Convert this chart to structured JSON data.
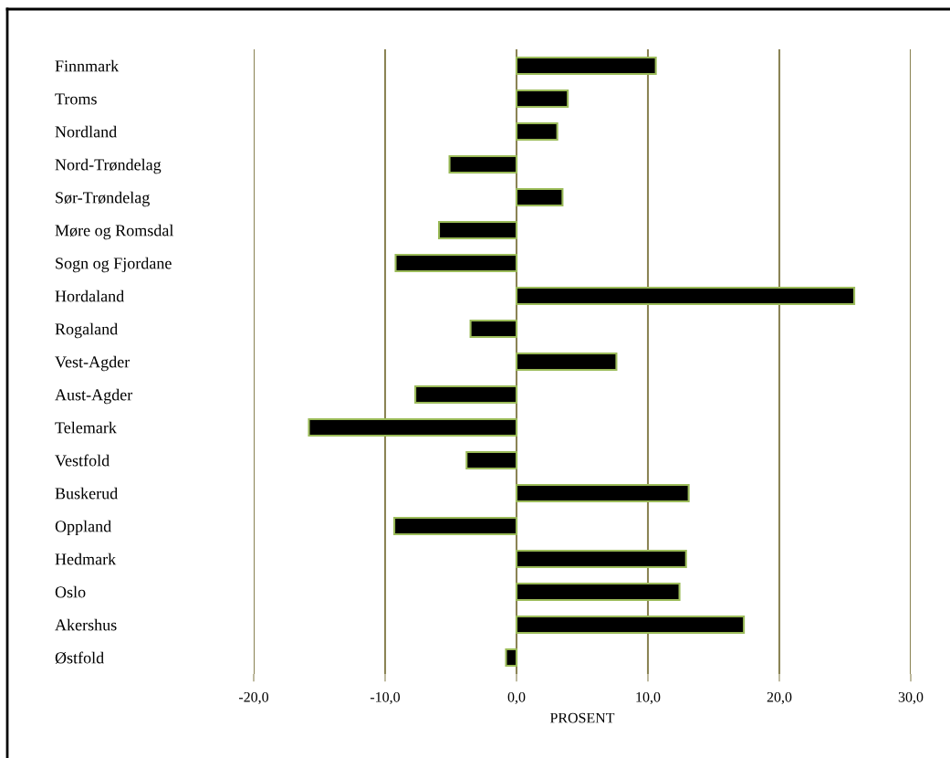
{
  "chart_data": {
    "type": "bar",
    "orientation": "horizontal",
    "xlabel": "PROSENT",
    "categories": [
      "Finnmark",
      "Troms",
      "Nordland",
      "Nord-Trøndelag",
      "Sør-Trøndelag",
      "Møre og Romsdal",
      "Sogn og Fjordane",
      "Hordaland",
      "Rogaland",
      "Vest-Agder",
      "Aust-Agder",
      "Telemark",
      "Vestfold",
      "Buskerud",
      "Oppland",
      "Hedmark",
      "Oslo",
      "Akershus",
      "Østfold"
    ],
    "values": [
      10.6,
      3.9,
      3.1,
      -5.1,
      3.5,
      -5.9,
      -9.2,
      25.7,
      -3.5,
      7.6,
      -7.7,
      -15.8,
      -3.8,
      13.1,
      -9.3,
      12.9,
      12.4,
      17.3,
      -0.8
    ],
    "color": "#000000",
    "xlim": [
      -20,
      30
    ],
    "xticks": [
      {
        "value": -20,
        "label": "-20,0"
      },
      {
        "value": -10,
        "label": "-10,0"
      },
      {
        "value": 0,
        "label": "0,0"
      },
      {
        "value": 10,
        "label": "10,0"
      },
      {
        "value": 20,
        "label": "20,0"
      },
      {
        "value": 30,
        "label": "30,0"
      }
    ],
    "grid": "x",
    "legend": false
  }
}
